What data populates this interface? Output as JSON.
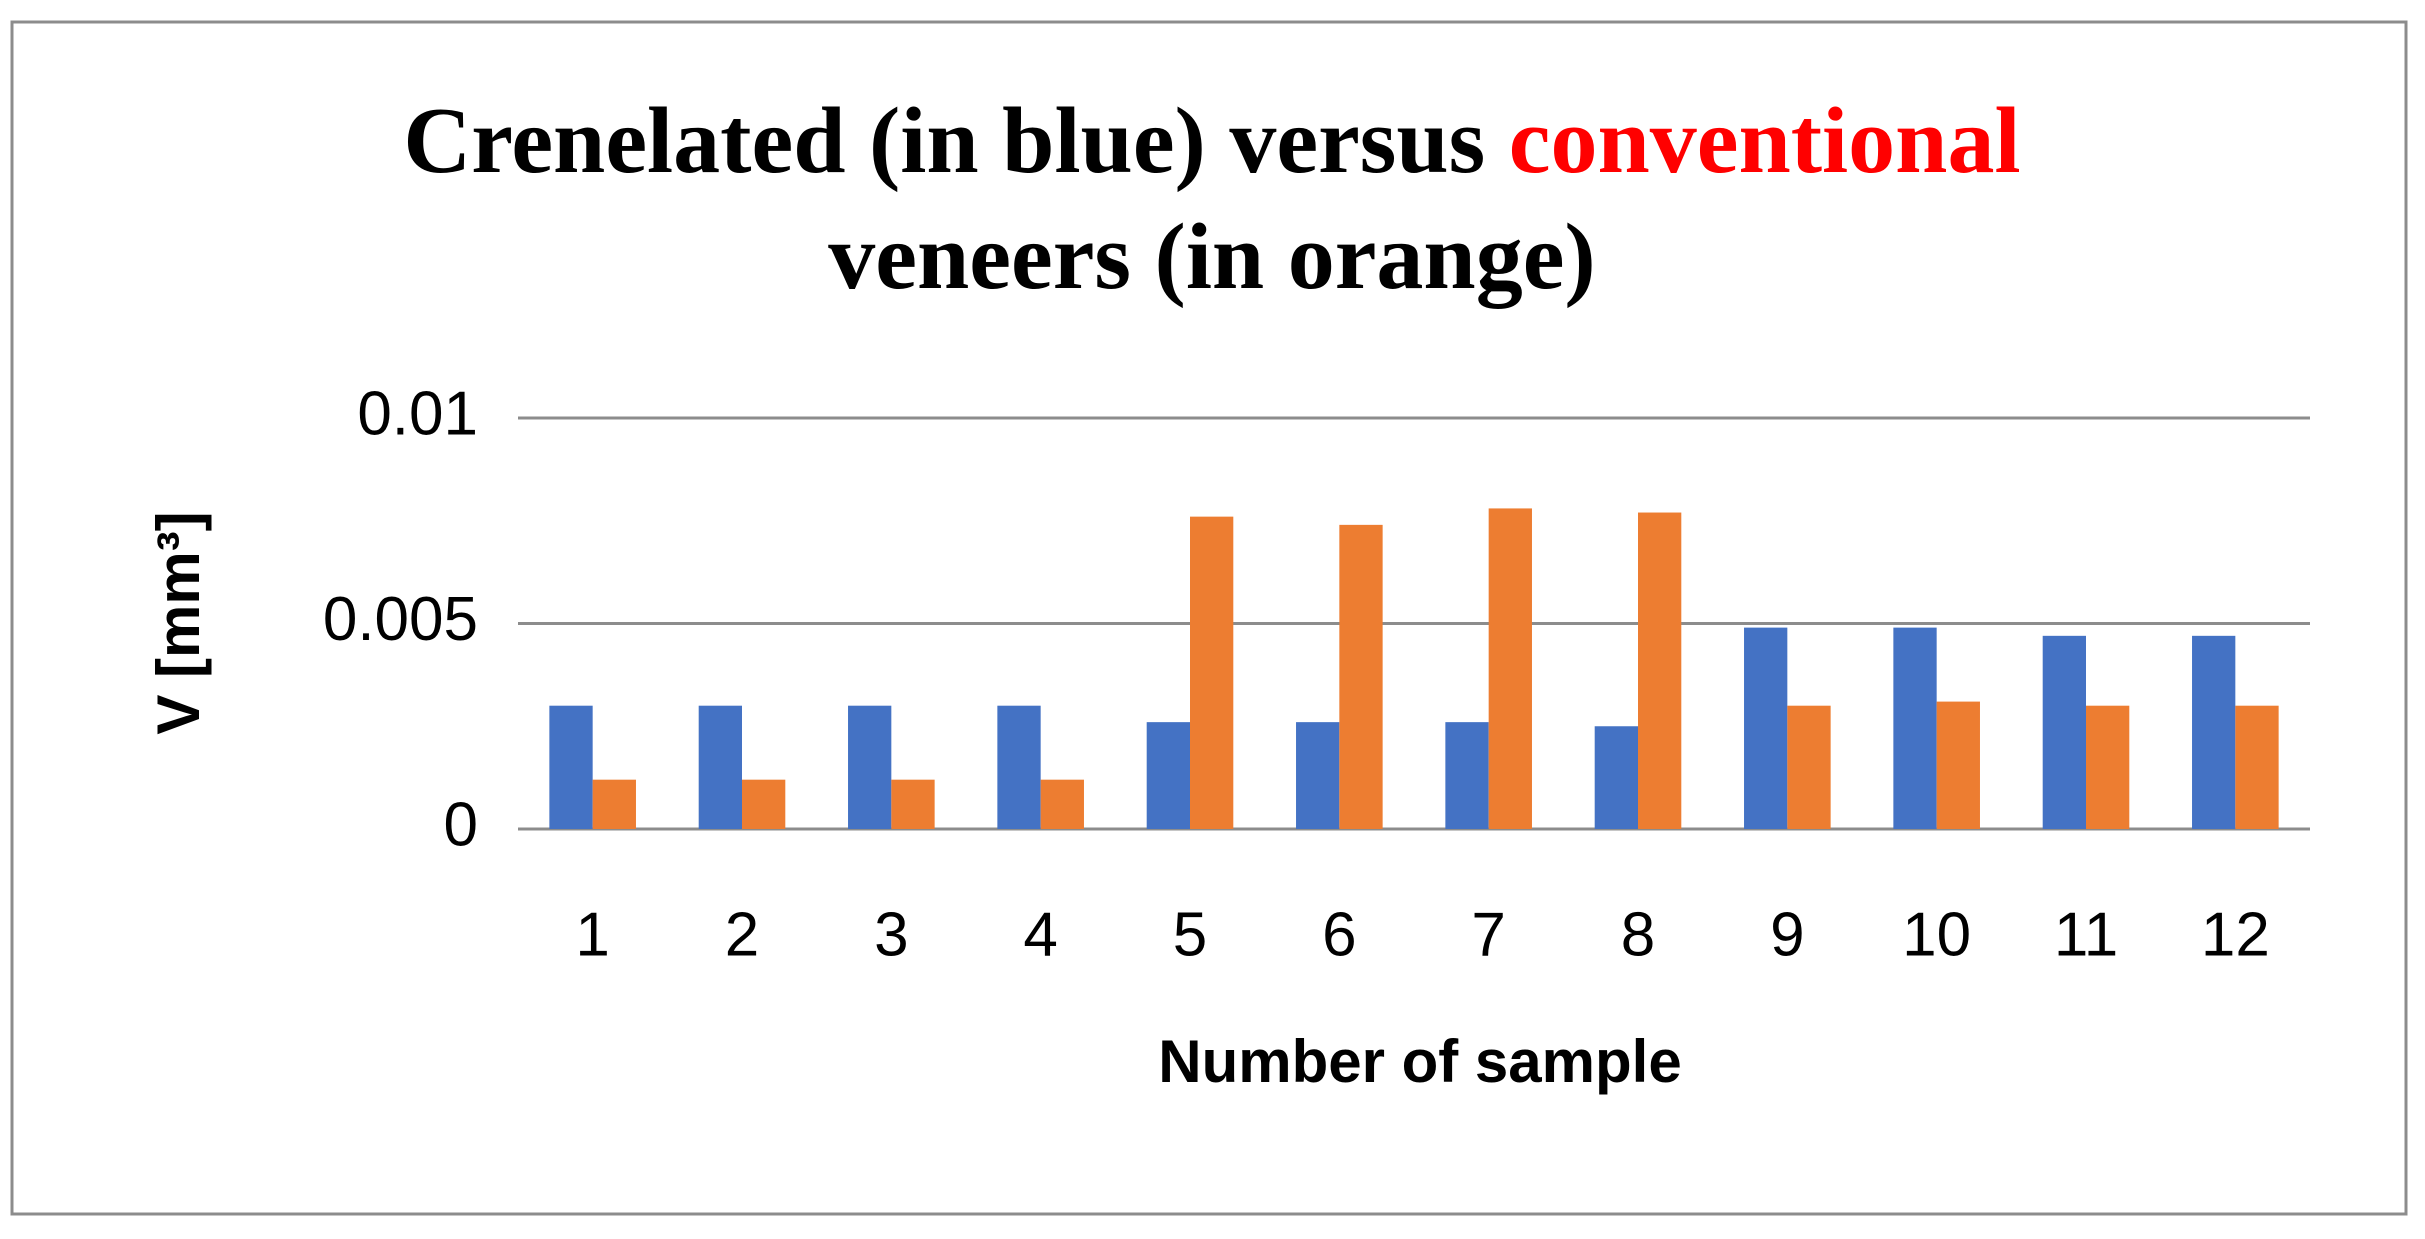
{
  "chart_data": {
    "type": "bar",
    "title": [
      {
        "text": "Crenelated (in blue) versus",
        "color": "#000000"
      },
      {
        "text": "conventional",
        "color": "#ff0000"
      },
      {
        "text": "veneers (in orange)",
        "color": "#000000"
      }
    ],
    "x_label": "Number of sample",
    "y_label": "V [mm³]",
    "categories": [
      "1",
      "2",
      "3",
      "4",
      "5",
      "6",
      "7",
      "8",
      "9",
      "10",
      "11",
      "12"
    ],
    "series": [
      {
        "color": "#4472c4",
        "values": [
          0.003,
          0.003,
          0.003,
          0.003,
          0.0026,
          0.0026,
          0.0026,
          0.0025,
          0.0049,
          0.0049,
          0.0047,
          0.0047
        ]
      },
      {
        "color": "#ed7d31",
        "values": [
          0.0012,
          0.0012,
          0.0012,
          0.0012,
          0.0076,
          0.0074,
          0.0078,
          0.0077,
          0.003,
          0.0031,
          0.003,
          0.003
        ]
      }
    ],
    "ylim": [
      0,
      0.01
    ],
    "yticks": [
      0,
      0.005,
      0.01
    ],
    "grid": true
  }
}
